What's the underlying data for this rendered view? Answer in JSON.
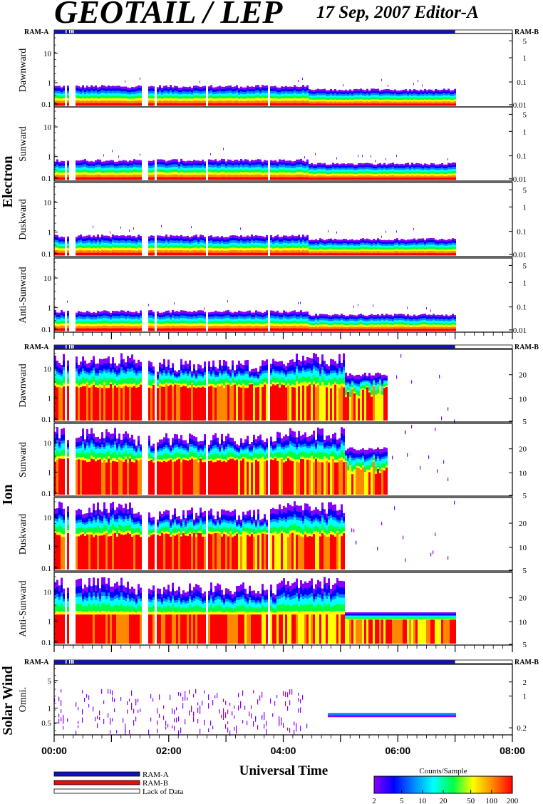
{
  "header": {
    "title": "GEOTAIL / LEP",
    "date_editor": "17 Sep, 2007   Editor-A"
  },
  "ram_labels": {
    "left": "RAM-A",
    "right": "RAM-B"
  },
  "colors": {
    "ram_a": "#1010c0",
    "ram_b": "#e01010",
    "colormap": [
      "#8800ff",
      "#0000ff",
      "#0088ff",
      "#00ffff",
      "#00ff44",
      "#ffff00",
      "#ff8800",
      "#ff0000"
    ]
  },
  "chart_data": {
    "type": "heatmap",
    "x_axis": {
      "label": "Universal Time",
      "range": [
        "00:00",
        "08:00"
      ],
      "ticks": [
        "00:00",
        "02:00",
        "04:00",
        "06:00",
        "08:00"
      ],
      "data_end": "07:00"
    },
    "groups": [
      {
        "name": "Electron",
        "panels": [
          {
            "name": "Dawnward",
            "left_ticks": [
              "10",
              "1",
              "0.1"
            ],
            "right_ticks": [
              "5",
              "1",
              "0.1",
              "0.01"
            ]
          },
          {
            "name": "Sunward",
            "left_ticks": [
              "10",
              "1",
              "0.1"
            ],
            "right_ticks": [
              "5",
              "1",
              "0.1",
              "0.01"
            ]
          },
          {
            "name": "Duskward",
            "left_ticks": [
              "10",
              "1",
              "0.1"
            ],
            "right_ticks": [
              "5",
              "1",
              "0.1",
              "0.01"
            ]
          },
          {
            "name": "Anti-Sunward",
            "left_ticks": [
              "10",
              "1",
              "0.1"
            ],
            "right_ticks": [
              "5",
              "1",
              "0.1",
              "0.01"
            ]
          }
        ]
      },
      {
        "name": "Ion",
        "panels": [
          {
            "name": "Dawnward",
            "left_ticks": [
              "10",
              "1",
              "0.1"
            ],
            "right_ticks": [
              "20",
              "10",
              "5"
            ]
          },
          {
            "name": "Sunward",
            "left_ticks": [
              "10",
              "1",
              "0.1"
            ],
            "right_ticks": [
              "20",
              "10",
              "5"
            ]
          },
          {
            "name": "Duskward",
            "left_ticks": [
              "10",
              "1",
              "0.1"
            ],
            "right_ticks": [
              "20",
              "10",
              "5"
            ]
          },
          {
            "name": "Anti-Sunward",
            "left_ticks": [
              "10",
              "1",
              "0.1"
            ],
            "right_ticks": [
              "20",
              "10",
              "5"
            ]
          }
        ]
      },
      {
        "name": "Solar Wind",
        "panels": [
          {
            "name": "Omni.",
            "left_ticks": [
              "5",
              "1",
              "0.5"
            ],
            "right_ticks": [
              "2",
              "1",
              "0.2"
            ]
          }
        ]
      }
    ],
    "legend": [
      {
        "label": "RAM-A",
        "color": "#1010c0"
      },
      {
        "label": "RAM-B",
        "color": "#e01010"
      },
      {
        "label": "Lack of Data",
        "color": "#ffffff"
      }
    ],
    "colorbar": {
      "title": "Counts/Sample",
      "ticks": [
        "2",
        "5",
        "10",
        "20",
        "50",
        "100",
        "200"
      ]
    }
  }
}
